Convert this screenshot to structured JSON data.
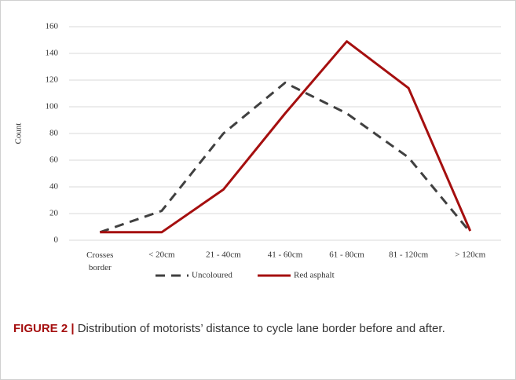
{
  "chart_data": {
    "type": "line",
    "y_label": "Count",
    "categories": [
      "Crosses border",
      "< 20cm",
      "21 - 40cm",
      "41 - 60cm",
      "61 - 80cm",
      "81 - 120cm",
      "> 120cm"
    ],
    "series": [
      {
        "name": "Uncoloured",
        "color": "#404040",
        "dash": true,
        "values": [
          6,
          22,
          80,
          118,
          95,
          62,
          6
        ]
      },
      {
        "name": "Red asphalt",
        "color": "#a50f0f",
        "dash": false,
        "values": [
          6,
          6,
          38,
          95,
          149,
          114,
          7
        ]
      }
    ],
    "ylim": [
      0,
      160
    ],
    "yticks": [
      0,
      20,
      40,
      60,
      80,
      100,
      120,
      140,
      160
    ],
    "grid": true
  },
  "caption": {
    "label": "FIGURE 2 |",
    "text": "Distribution of motorists’ distance to cycle lane border before and after."
  }
}
